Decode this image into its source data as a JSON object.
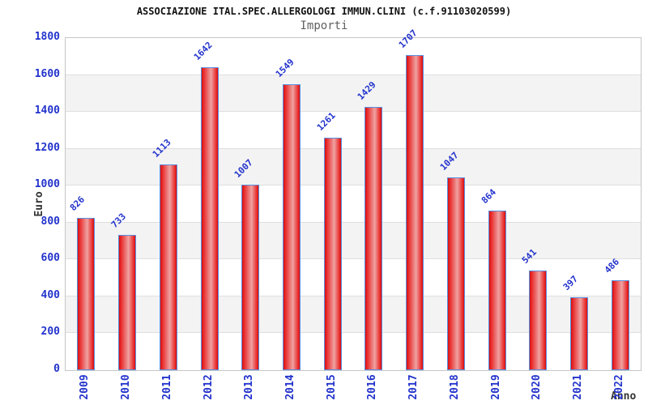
{
  "chart_data": {
    "type": "bar",
    "title": "ASSOCIAZIONE ITAL.SPEC.ALLERGOLOGI IMMUN.CLINI (c.f.91103020599)",
    "subtitle": "Importi",
    "xlabel": "Anno",
    "ylabel": "Euro",
    "categories": [
      "2009",
      "2010",
      "2011",
      "2012",
      "2013",
      "2014",
      "2015",
      "2016",
      "2017",
      "2018",
      "2019",
      "2020",
      "2021",
      "2022"
    ],
    "values": [
      826,
      733,
      1113,
      1642,
      1007,
      1549,
      1261,
      1429,
      1707,
      1047,
      864,
      541,
      397,
      486
    ],
    "ylim": [
      0,
      1800
    ],
    "ytick_step": 200,
    "yticks": [
      0,
      200,
      400,
      600,
      800,
      1000,
      1200,
      1400,
      1600,
      1800
    ],
    "grid": true,
    "legend_position": "none",
    "colors": {
      "bar_fill": "#e92525",
      "bar_fill_light": "#efa2a2",
      "bar_fill_dark": "#cf1111",
      "bar_border": "#5a8fe2",
      "label_text": "#2333cc",
      "axis_title_text": "#333333",
      "title_text": "#111111",
      "subtitle_text": "#606060",
      "band_light": "#ffffff",
      "band_dark": "#f3f3f3",
      "gridline": "#dedede",
      "plot_border": "#c6c6c6"
    }
  }
}
